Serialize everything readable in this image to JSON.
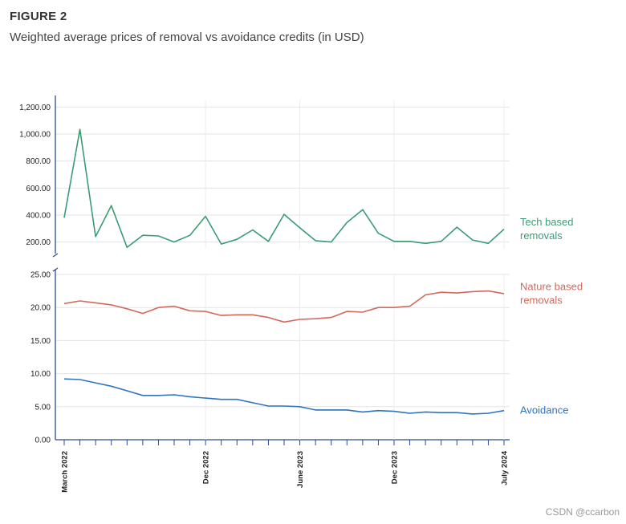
{
  "figure_label": "FIGURE 2",
  "title": "Weighted average prices of removal vs avoidance credits (in USD)",
  "watermark": "CSDN @ccarbon",
  "chart_data": {
    "type": "line",
    "grid": "y",
    "x_start": "2022-03",
    "x_end": "2024-07",
    "x_tick_labels": [
      "March 2022",
      "Dec 2022",
      "June 2023",
      "Dec 2023",
      "July 2024"
    ],
    "panels": [
      {
        "name": "upper",
        "ylim": [
          150,
          1250
        ],
        "y_ticks": [
          "200.00",
          "400.00",
          "600.00",
          "800.00",
          "1,000.00",
          "1,200.00"
        ],
        "series": [
          {
            "name": "Tech based removals",
            "label_lines": [
              "Tech based",
              "removals"
            ],
            "color": "#3b9c74",
            "values": [
              380,
              1035,
              240,
              470,
              160,
              250,
              245,
              200,
              250,
              390,
              185,
              220,
              290,
              205,
              405,
              305,
              210,
              200,
              345,
              440,
              265,
              205,
              205,
              190,
              205,
              310,
              215,
              190,
              295
            ]
          }
        ]
      },
      {
        "name": "lower",
        "ylim": [
          0,
          25
        ],
        "y_ticks": [
          "0.00",
          "5.00",
          "10.00",
          "15.00",
          "20.00",
          "25.00"
        ],
        "series": [
          {
            "name": "Nature based removals",
            "label_lines": [
              "Nature based",
              "removals"
            ],
            "color": "#d2695b",
            "values": [
              20.6,
              21.0,
              20.7,
              20.4,
              19.8,
              19.1,
              20.0,
              20.2,
              19.5,
              19.4,
              18.8,
              18.9,
              18.9,
              18.5,
              17.8,
              18.2,
              18.3,
              18.5,
              19.4,
              19.3,
              20.0,
              20.0,
              20.2,
              21.9,
              22.3,
              22.2,
              22.4,
              22.5,
              22.1
            ]
          },
          {
            "name": "Avoidance",
            "label_lines": [
              "Avoidance"
            ],
            "color": "#2f74c0",
            "values": [
              9.2,
              9.1,
              8.6,
              8.1,
              7.4,
              6.7,
              6.7,
              6.8,
              6.5,
              6.3,
              6.1,
              6.1,
              5.6,
              5.1,
              5.1,
              5.0,
              4.5,
              4.5,
              4.5,
              4.2,
              4.4,
              4.3,
              4.0,
              4.2,
              4.1,
              4.1,
              3.9,
              4.0,
              4.4
            ]
          }
        ]
      }
    ]
  }
}
